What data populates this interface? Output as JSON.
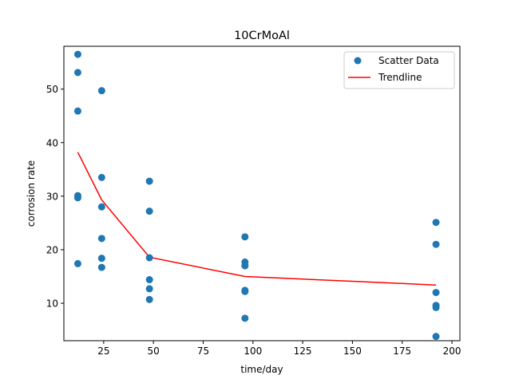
{
  "chart_data": {
    "type": "scatter",
    "title": "10CrMoAl",
    "xlabel": "time/day",
    "ylabel": "corrosion rate",
    "xlim": [
      5,
      204
    ],
    "ylim": [
      3,
      58
    ],
    "xticks": [
      25,
      50,
      75,
      100,
      125,
      150,
      175,
      200
    ],
    "yticks": [
      10,
      20,
      30,
      40,
      50
    ],
    "grid": false,
    "legend_position": "top-right",
    "series": [
      {
        "name": "Scatter Data",
        "kind": "scatter",
        "color": "#1f77b4",
        "points": [
          [
            12,
            56.5
          ],
          [
            12,
            53.1
          ],
          [
            12,
            45.9
          ],
          [
            12,
            30.1
          ],
          [
            12,
            29.7
          ],
          [
            12,
            17.4
          ],
          [
            24,
            49.7
          ],
          [
            24,
            33.5
          ],
          [
            24,
            28.0
          ],
          [
            24,
            22.1
          ],
          [
            24,
            18.4
          ],
          [
            24,
            16.7
          ],
          [
            48,
            32.8
          ],
          [
            48,
            27.2
          ],
          [
            48,
            18.5
          ],
          [
            48,
            14.4
          ],
          [
            48,
            12.7
          ],
          [
            48,
            10.7
          ],
          [
            96,
            22.4
          ],
          [
            96,
            17.7
          ],
          [
            96,
            17.0
          ],
          [
            96,
            12.4
          ],
          [
            96,
            12.2
          ],
          [
            96,
            7.2
          ],
          [
            192,
            25.1
          ],
          [
            192,
            21.0
          ],
          [
            192,
            12.0
          ],
          [
            192,
            9.6
          ],
          [
            192,
            9.2
          ],
          [
            192,
            3.8
          ]
        ]
      },
      {
        "name": "Trendline",
        "kind": "line",
        "color": "#ff0000",
        "points": [
          [
            12,
            38.2
          ],
          [
            24,
            29.3
          ],
          [
            48,
            18.6
          ],
          [
            96,
            15.0
          ],
          [
            192,
            13.4
          ]
        ]
      }
    ]
  }
}
